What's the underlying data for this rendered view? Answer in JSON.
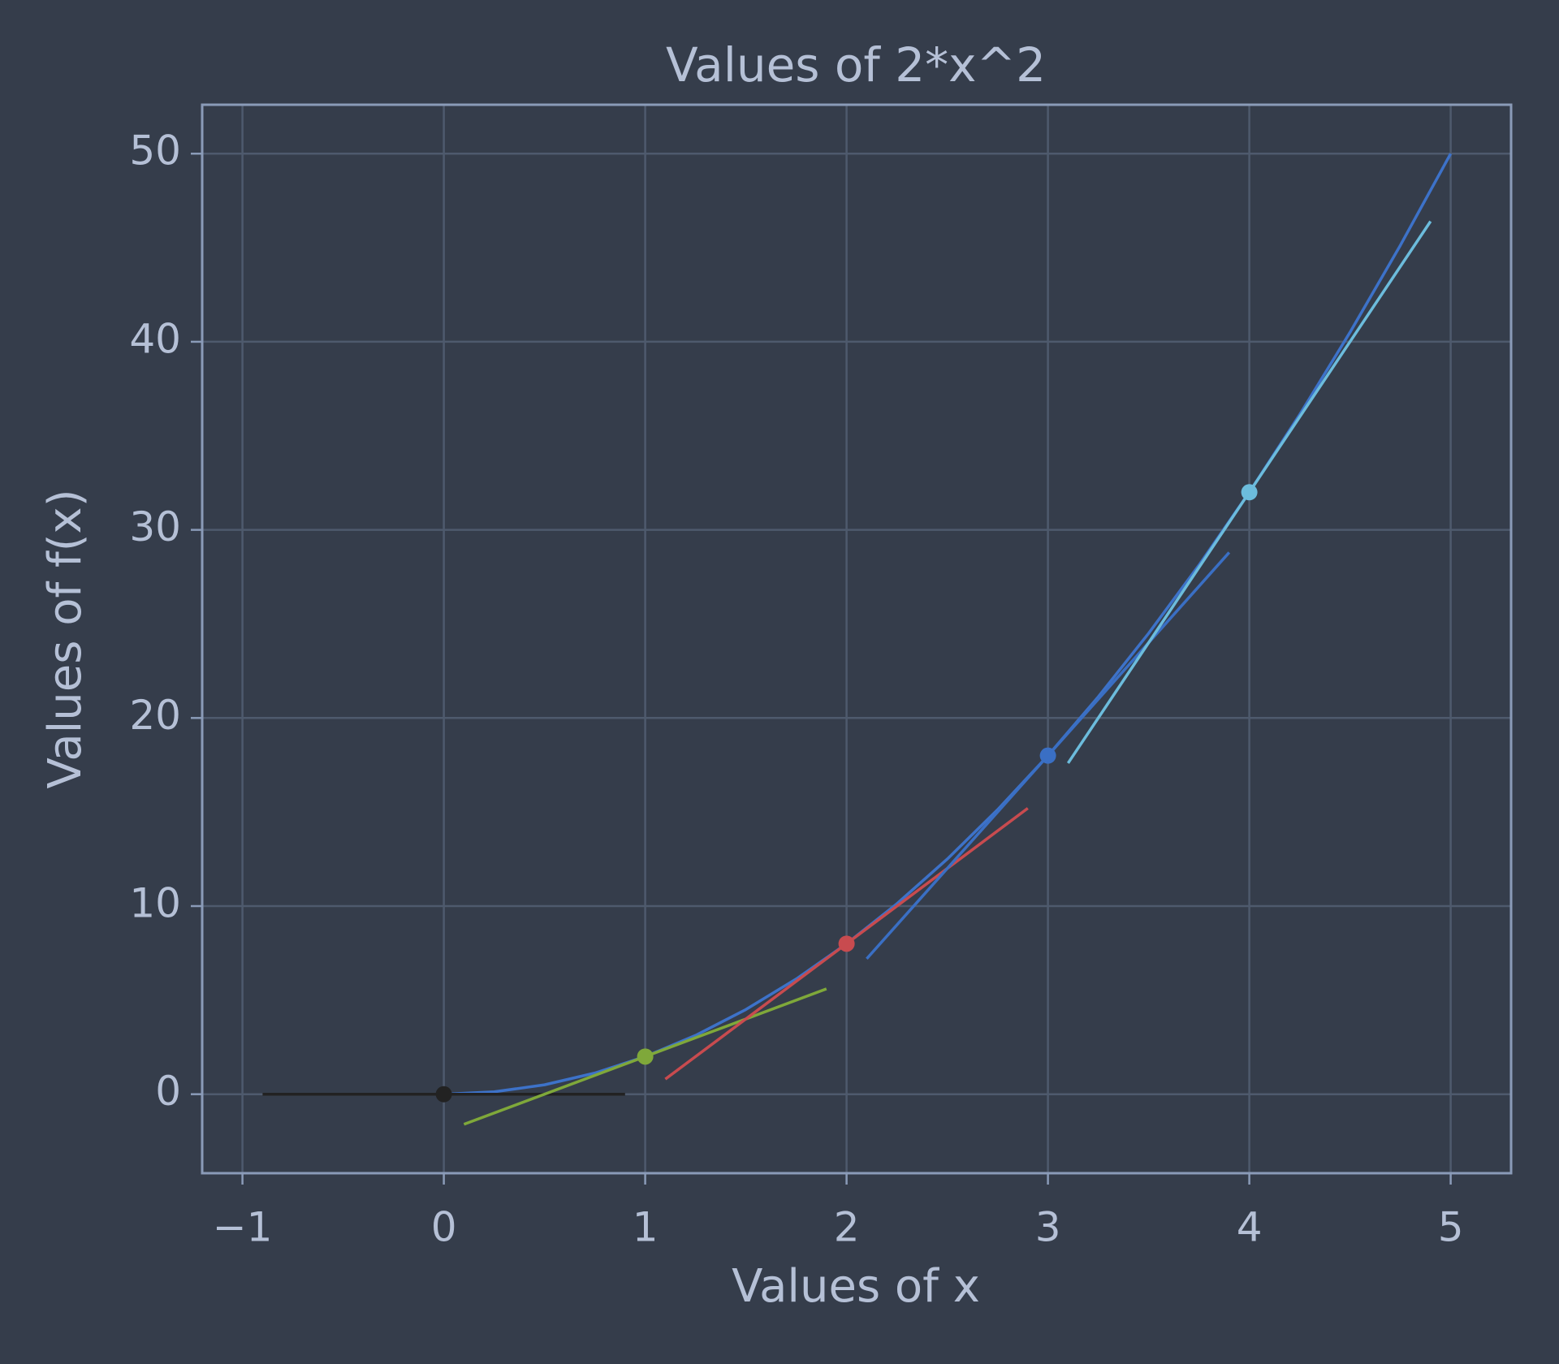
{
  "chart_data": {
    "type": "line",
    "title": "Values of 2*x^2",
    "x_label": "Values of x",
    "y_label": "Values of f(x)",
    "xlim": [
      -1.2,
      5.3
    ],
    "ylim": [
      -4.2,
      52.6
    ],
    "xticks": [
      {
        "value": -1,
        "label": "−1"
      },
      0,
      1,
      2,
      3,
      4,
      5
    ],
    "yticks": [
      0,
      10,
      20,
      30,
      40,
      50
    ],
    "grid": true,
    "series": [
      {
        "color": "#3d72c9",
        "marker": false,
        "x": [
          0,
          0.25,
          0.5,
          0.75,
          1,
          1.25,
          1.5,
          1.75,
          2,
          2.25,
          2.5,
          2.75,
          3,
          3.25,
          3.5,
          3.75,
          4,
          4.25,
          4.5,
          4.75,
          5
        ],
        "values": [
          0,
          0.125,
          0.5,
          1.125,
          2,
          3.125,
          4.5,
          6.125,
          8,
          10.125,
          12.5,
          15.125,
          18,
          21.125,
          24.5,
          28.125,
          32,
          36.125,
          40.5,
          45.125,
          50
        ]
      },
      {
        "color": "#222222",
        "marker": false,
        "x": [
          -0.9,
          0.9
        ],
        "values": [
          0,
          0
        ]
      },
      {
        "color": "#7fa83a",
        "marker": false,
        "x": [
          0.1,
          1.9
        ],
        "values": [
          -1.6,
          5.6
        ]
      },
      {
        "color": "#c84b4f",
        "marker": false,
        "x": [
          1.1,
          2.9
        ],
        "values": [
          0.8,
          15.2
        ]
      },
      {
        "color": "#3a6fc4",
        "marker": false,
        "x": [
          2.1,
          3.9
        ],
        "values": [
          7.2,
          28.8
        ]
      },
      {
        "color": "#6cbcdc",
        "marker": false,
        "x": [
          3.1,
          4.9
        ],
        "values": [
          17.6,
          46.4
        ]
      },
      {
        "marker": true,
        "colors": [
          "#222222",
          "#7fa83a",
          "#c84b4f",
          "#3a6fc4",
          "#6cbcdc"
        ],
        "x": [
          0,
          1,
          2,
          3,
          4
        ],
        "values": [
          0,
          2,
          8,
          18,
          32
        ]
      }
    ]
  }
}
